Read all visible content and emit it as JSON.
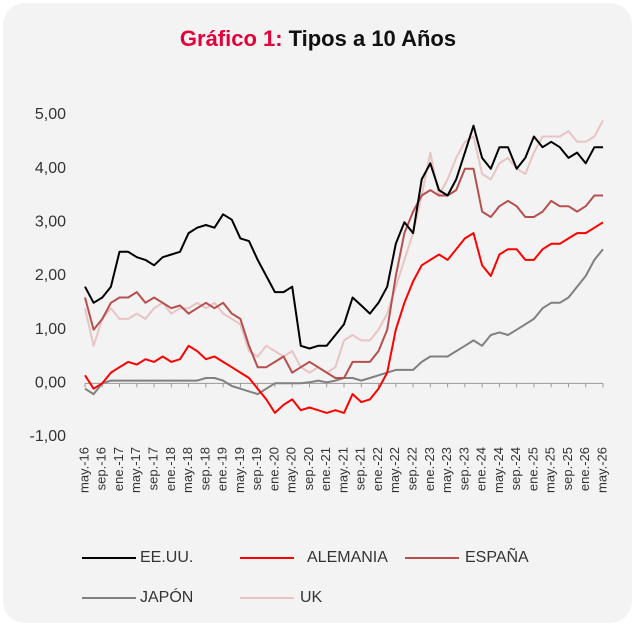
{
  "chart_data": {
    "type": "line",
    "title_prefix": "Gráfico 1:",
    "title": "Tipos a 10 Años",
    "categories": [
      "may.-16",
      null,
      "sep.-16",
      null,
      "ene.-17",
      null,
      "may.-17",
      null,
      "sep.-17",
      null,
      "ene.-18",
      null,
      "may.-18",
      null,
      "sep.-18",
      null,
      "ene.-19",
      null,
      "may.-19",
      null,
      "sep.-19",
      null,
      "ene.-20",
      null,
      "may.-20",
      null,
      "sep.-20",
      null,
      "ene.-21",
      null,
      "may.-21",
      null,
      "sep.-21",
      null,
      "ene.-22",
      null,
      "may.-22",
      null,
      "sep.-22",
      null,
      "ene.-23",
      null,
      "may.-23",
      null,
      "sep.-23",
      null,
      "ene.-24",
      null,
      "may.-24",
      null,
      "sep.-24",
      null,
      "ene.-25",
      null,
      "may.-25",
      null,
      "sep.-25",
      null,
      "ene.-26",
      null,
      "may.-26"
    ],
    "series": [
      {
        "name": "EE.UU.",
        "color": "#000000",
        "values": [
          1.8,
          1.5,
          1.6,
          1.8,
          2.45,
          2.45,
          2.35,
          2.3,
          2.2,
          2.35,
          2.4,
          2.45,
          2.8,
          2.9,
          2.95,
          2.9,
          3.15,
          3.05,
          2.7,
          2.65,
          2.3,
          2.0,
          1.7,
          1.7,
          1.8,
          0.7,
          0.65,
          0.7,
          0.7,
          0.9,
          1.1,
          1.6,
          1.45,
          1.3,
          1.5,
          1.8,
          2.6,
          3.0,
          2.8,
          3.8,
          4.1,
          3.6,
          3.5,
          3.8,
          4.3,
          4.8,
          4.2,
          4.0,
          4.4,
          4.4,
          4.0,
          4.2,
          4.6,
          4.4,
          4.5,
          4.4,
          4.2,
          4.3,
          4.1,
          4.4,
          4.4
        ]
      },
      {
        "name": "ALEMANIA",
        "color": "#ff0000",
        "values": [
          0.15,
          -0.1,
          0.0,
          0.2,
          0.3,
          0.4,
          0.35,
          0.45,
          0.4,
          0.5,
          0.4,
          0.45,
          0.7,
          0.6,
          0.45,
          0.5,
          0.4,
          0.3,
          0.2,
          0.1,
          -0.1,
          -0.3,
          -0.55,
          -0.4,
          -0.3,
          -0.5,
          -0.45,
          -0.5,
          -0.55,
          -0.5,
          -0.55,
          -0.2,
          -0.35,
          -0.3,
          -0.1,
          0.2,
          1.0,
          1.5,
          1.9,
          2.2,
          2.3,
          2.4,
          2.3,
          2.5,
          2.7,
          2.8,
          2.2,
          2.0,
          2.4,
          2.5,
          2.5,
          2.3,
          2.3,
          2.5,
          2.6,
          2.6,
          2.7,
          2.8,
          2.8,
          2.9,
          3.0
        ]
      },
      {
        "name": "ESPAÑA",
        "color": "#b5504f",
        "values": [
          1.6,
          1.0,
          1.2,
          1.5,
          1.6,
          1.6,
          1.7,
          1.5,
          1.6,
          1.5,
          1.4,
          1.45,
          1.3,
          1.4,
          1.5,
          1.4,
          1.5,
          1.3,
          1.2,
          0.7,
          0.3,
          0.3,
          0.4,
          0.5,
          0.2,
          0.3,
          0.4,
          0.3,
          0.2,
          0.1,
          0.1,
          0.4,
          0.4,
          0.4,
          0.6,
          1.0,
          2.0,
          2.8,
          3.2,
          3.5,
          3.6,
          3.5,
          3.5,
          3.6,
          4.0,
          4.0,
          3.2,
          3.1,
          3.3,
          3.4,
          3.3,
          3.1,
          3.1,
          3.2,
          3.4,
          3.3,
          3.3,
          3.2,
          3.3,
          3.5,
          3.5
        ]
      },
      {
        "name": "JAPÓN",
        "color": "#808080",
        "values": [
          -0.1,
          -0.2,
          0.0,
          0.05,
          0.05,
          0.05,
          0.05,
          0.05,
          0.05,
          0.05,
          0.05,
          0.05,
          0.05,
          0.05,
          0.1,
          0.1,
          0.05,
          -0.05,
          -0.1,
          -0.15,
          -0.2,
          -0.1,
          0.0,
          0.0,
          0.0,
          0.0,
          0.02,
          0.05,
          0.02,
          0.05,
          0.1,
          0.1,
          0.05,
          0.1,
          0.15,
          0.2,
          0.25,
          0.25,
          0.25,
          0.4,
          0.5,
          0.5,
          0.5,
          0.6,
          0.7,
          0.8,
          0.7,
          0.9,
          0.95,
          0.9,
          1.0,
          1.1,
          1.2,
          1.4,
          1.5,
          1.5,
          1.6,
          1.8,
          2.0,
          2.3,
          2.5
        ]
      },
      {
        "name": "UK",
        "color": "#e8c4c4",
        "values": [
          1.4,
          0.7,
          1.2,
          1.4,
          1.2,
          1.2,
          1.3,
          1.2,
          1.4,
          1.5,
          1.3,
          1.4,
          1.4,
          1.5,
          1.4,
          1.5,
          1.3,
          1.2,
          1.1,
          0.6,
          0.5,
          0.7,
          0.6,
          0.5,
          0.6,
          0.3,
          0.2,
          0.3,
          0.2,
          0.3,
          0.8,
          0.9,
          0.8,
          0.8,
          1.0,
          1.3,
          1.8,
          2.3,
          2.8,
          3.5,
          4.3,
          3.5,
          3.8,
          4.2,
          4.5,
          4.6,
          3.9,
          3.8,
          4.1,
          4.2,
          4.0,
          3.9,
          4.3,
          4.6,
          4.6,
          4.6,
          4.7,
          4.5,
          4.5,
          4.6,
          4.9
        ]
      }
    ],
    "ylim": [
      -1,
      5
    ],
    "yticks": [
      {
        "value": -1,
        "label": "-1,00"
      },
      {
        "value": 0,
        "label": "0,00"
      },
      {
        "value": 1,
        "label": "1,00"
      },
      {
        "value": 2,
        "label": "2,00"
      },
      {
        "value": 3,
        "label": "3,00"
      },
      {
        "value": 4,
        "label": "4,00"
      },
      {
        "value": 5,
        "label": "5,00"
      }
    ],
    "grid": false,
    "legend": "bottom"
  }
}
